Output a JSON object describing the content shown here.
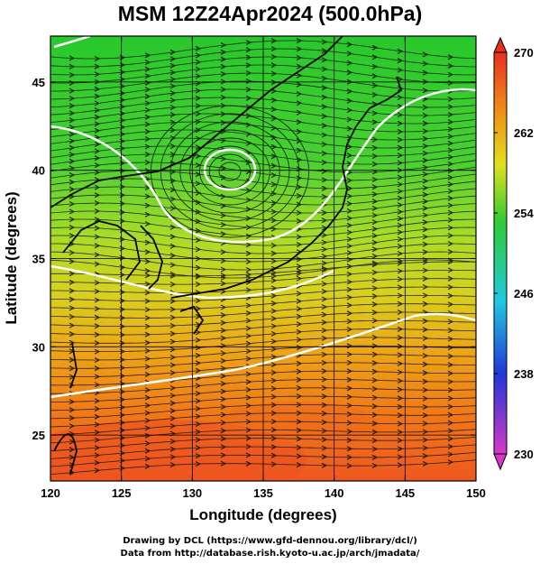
{
  "title": "MSM 12Z24Apr2024 (500.0hPa)",
  "map": {
    "xlabel": "Longitude (degrees)",
    "ylabel": "Latitude  (degrees)",
    "lon_ticks": [
      "120",
      "125",
      "130",
      "135",
      "140",
      "145",
      "150"
    ],
    "lat_ticks": [
      "25",
      "30",
      "35",
      "40",
      "45"
    ],
    "lon_range": [
      120,
      150
    ],
    "lat_range": [
      22.4,
      47.6
    ],
    "grid": true
  },
  "colorbar": {
    "labels": [
      "270",
      "262",
      "254",
      "246",
      "238",
      "230"
    ],
    "range": [
      230,
      270
    ],
    "colors": {
      "low": "#d838c8",
      "blue": "#2038d8",
      "cyan": "#20c8e0",
      "green": "#30cc30",
      "yellow": "#e0e020",
      "orange": "#f09018",
      "high": "#e83020"
    }
  },
  "credits": {
    "line1": "Drawing by DCL (https://www.gfd-dennou.org/library/dcl/)",
    "line2": "Data from http://database.rish.kyoto-u.ac.jp/arch/jmadata/"
  }
}
